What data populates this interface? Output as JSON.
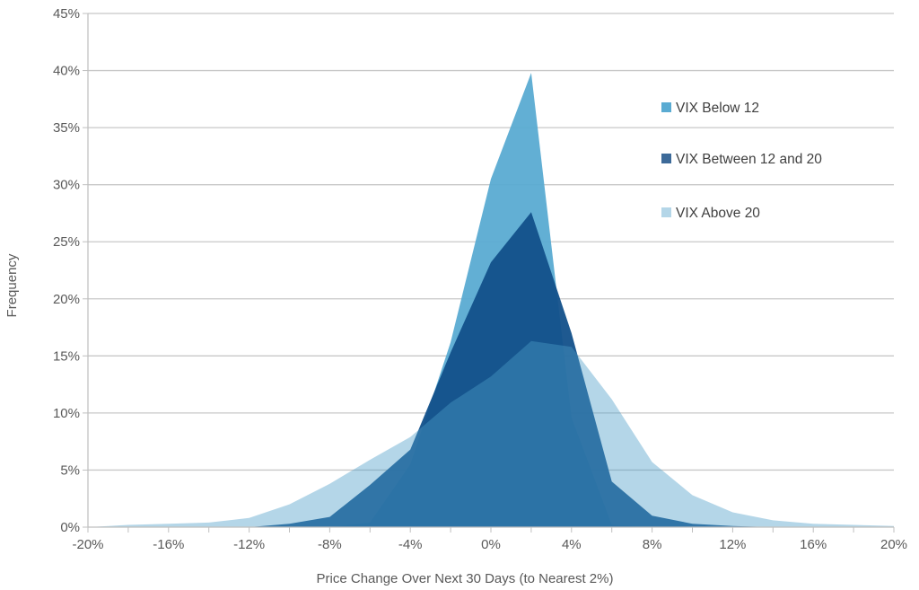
{
  "chart_data": {
    "type": "area",
    "title": "",
    "xlabel": "Price Change Over Next 30 Days (to Nearest 2%)",
    "ylabel": "Frequency",
    "x": [
      -20,
      -18,
      -16,
      -14,
      -12,
      -10,
      -8,
      -6,
      -4,
      -2,
      0,
      2,
      4,
      6,
      8,
      10,
      12,
      14,
      16,
      18,
      20
    ],
    "xlim": [
      -20,
      20
    ],
    "ylim": [
      0,
      45
    ],
    "x_ticks": [
      "-20%",
      "-16%",
      "-12%",
      "-8%",
      "-4%",
      "0%",
      "4%",
      "8%",
      "12%",
      "16%",
      "20%"
    ],
    "x_tick_values": [
      -20,
      -16,
      -12,
      -8,
      -4,
      0,
      4,
      8,
      12,
      16,
      20
    ],
    "y_ticks": [
      "0%",
      "5%",
      "10%",
      "15%",
      "20%",
      "25%",
      "30%",
      "35%",
      "40%",
      "45%"
    ],
    "y_tick_values": [
      0,
      5,
      10,
      15,
      20,
      25,
      30,
      35,
      40,
      45
    ],
    "grid": "horizontal",
    "legend_position": "right",
    "series": [
      {
        "name": "VIX Below 12",
        "color": "#5aabd2",
        "values": [
          0,
          0,
          0,
          0,
          0,
          0,
          0,
          0.4,
          5.5,
          16.2,
          30.5,
          39.8,
          9.6,
          0.2,
          0,
          0,
          0,
          0,
          0,
          0,
          0
        ]
      },
      {
        "name": "VIX Between 12 and 20",
        "color": "#12508a",
        "values": [
          0,
          0,
          0,
          0,
          0,
          0.3,
          0.9,
          3.7,
          6.8,
          15.3,
          23.2,
          27.6,
          17.0,
          4.0,
          1.0,
          0.3,
          0.1,
          0,
          0,
          0,
          0
        ]
      },
      {
        "name": "VIX Above 20",
        "color": "#4c9dc8",
        "values": [
          0,
          0.2,
          0.3,
          0.4,
          0.8,
          2.0,
          3.8,
          5.9,
          7.9,
          10.9,
          13.2,
          16.3,
          15.8,
          11.2,
          5.7,
          2.8,
          1.3,
          0.6,
          0.3,
          0.2,
          0.1
        ]
      }
    ]
  }
}
